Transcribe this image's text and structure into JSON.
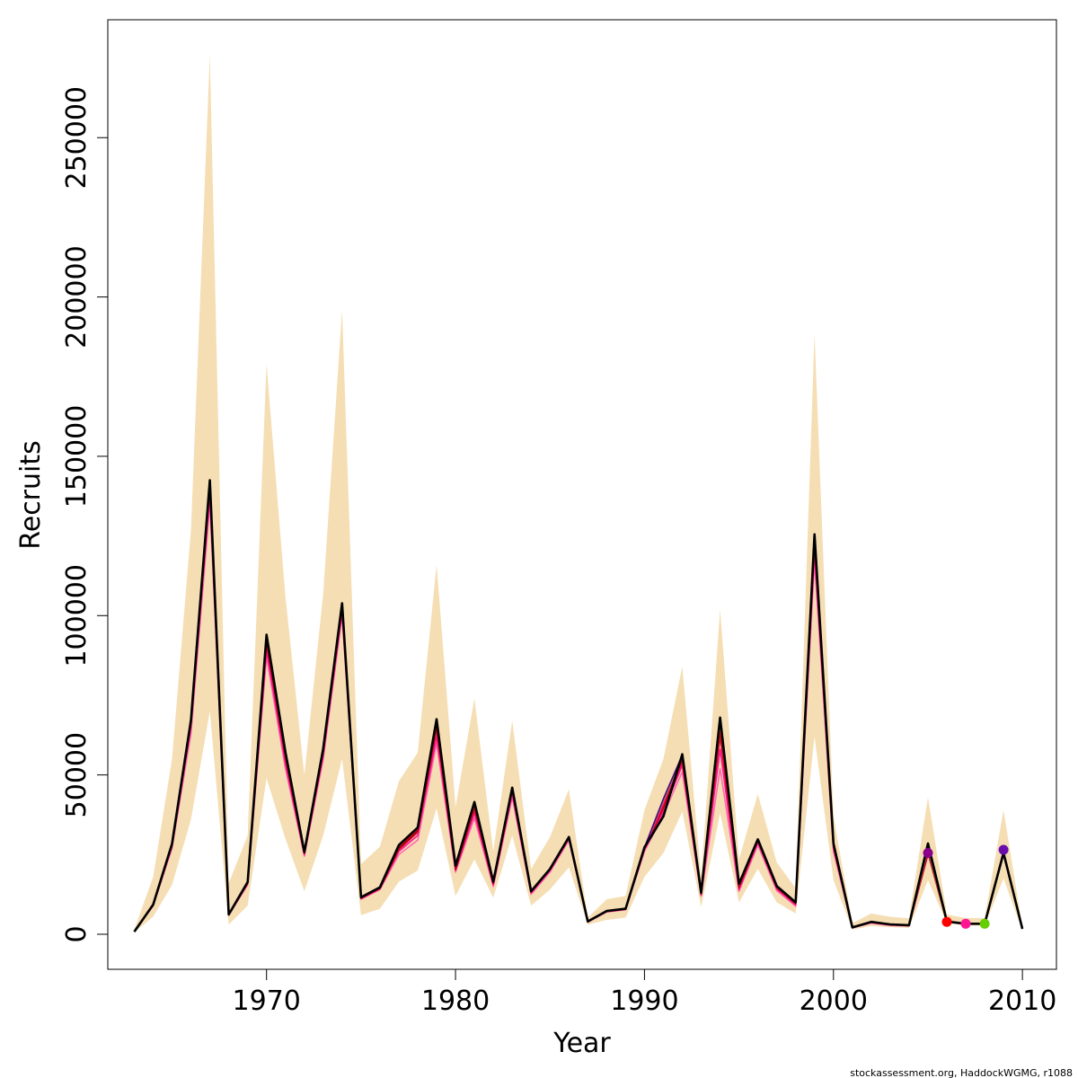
{
  "chart_data": {
    "type": "line",
    "xlabel": "Year",
    "ylabel": "Recruits",
    "xlim": [
      1961.6,
      2011.8
    ],
    "ylim": [
      -11000,
      287000
    ],
    "x_ticks": [
      1970,
      1980,
      1990,
      2000,
      2010
    ],
    "y_ticks": [
      0,
      50000,
      100000,
      150000,
      200000,
      250000
    ],
    "band": {
      "color": "#f5deb3",
      "years": [
        1963,
        1964,
        1965,
        1966,
        1967,
        1968,
        1969,
        1970,
        1971,
        1972,
        1973,
        1974,
        1975,
        1976,
        1977,
        1978,
        1979,
        1980,
        1981,
        1982,
        1983,
        1984,
        1985,
        1986,
        1987,
        1988,
        1989,
        1990,
        1991,
        1992,
        1993,
        1994,
        1995,
        1996,
        1997,
        1998,
        1999,
        2000,
        2001,
        2002,
        2003,
        2004,
        2005,
        2006,
        2007,
        2008,
        2009,
        2010
      ],
      "lower": [
        600,
        5500,
        15500,
        36000,
        70000,
        3000,
        9000,
        49000,
        30000,
        13500,
        31000,
        55000,
        6000,
        8000,
        16500,
        20000,
        39500,
        12000,
        23500,
        11500,
        31000,
        9000,
        14000,
        21000,
        3000,
        4500,
        5200,
        18000,
        25500,
        38500,
        8500,
        38000,
        10000,
        20500,
        10000,
        6500,
        62000,
        17000,
        1500,
        2600,
        2200,
        2000,
        17000,
        3500,
        2700,
        2700,
        17500,
        1000
      ],
      "upper": [
        1500,
        18000,
        55000,
        127000,
        276000,
        16000,
        31000,
        179000,
        106000,
        50000,
        107000,
        196000,
        22000,
        27500,
        48000,
        57000,
        116000,
        40000,
        74000,
        26000,
        67000,
        20500,
        30500,
        45500,
        5200,
        11000,
        12000,
        39000,
        55000,
        84000,
        18000,
        102000,
        23500,
        44000,
        22500,
        14500,
        188500,
        37000,
        3500,
        6500,
        5500,
        5000,
        43000,
        6200,
        5100,
        5100,
        39000,
        2200
      ]
    },
    "series": [
      {
        "color": "#ff69b4",
        "values": [
          800,
          9000,
          27000,
          63000,
          135000,
          6000,
          15500,
          87000,
          52000,
          24500,
          55000,
          100000,
          11000,
          14000,
          25000,
          29500,
          60000,
          19500,
          36500,
          15000,
          43000,
          12500,
          19500,
          29500,
          3800,
          7000,
          7700,
          26000,
          37500,
          51000,
          12000,
          52000,
          13500,
          28000,
          13700,
          8800,
          117000,
          26000,
          2000,
          3500,
          2800,
          2600
        ]
      },
      {
        "color": "#ff1493",
        "values": [
          800,
          9000,
          27500,
          65000,
          138000,
          6000,
          15800,
          89000,
          53500,
          25000,
          56000,
          101000,
          11200,
          14200,
          26000,
          31000,
          62000,
          20000,
          38000,
          15500,
          44000,
          13000,
          20000,
          30000,
          3900,
          7100,
          7800,
          26500,
          38500,
          53000,
          12300,
          58000,
          14000,
          28800,
          14200,
          9200,
          120000,
          27000,
          2100,
          3700,
          2900,
          2700
        ]
      },
      {
        "color": "#dc143c",
        "values": [
          800,
          9200,
          28000,
          66000,
          140000,
          6100,
          16000,
          91000,
          55000,
          25300,
          57000,
          102500,
          11300,
          14400,
          26500,
          32000,
          64000,
          20300,
          39000,
          15800,
          45000,
          13200,
          20200,
          30200,
          4000,
          7200,
          7900,
          27000,
          39500,
          54000,
          12500,
          62000,
          14500,
          29200,
          14500,
          9500,
          122000,
          27500,
          2100,
          3800,
          3000,
          2750,
          25000
        ]
      },
      {
        "color": "#8b0000",
        "values": [
          800,
          9200,
          28000,
          66500,
          141000,
          6200,
          16200,
          92000,
          56000,
          25500,
          57500,
          103000,
          11400,
          14500,
          27000,
          32500,
          65500,
          20500,
          40000,
          16000,
          45500,
          13300,
          20300,
          30300,
          4000,
          7300,
          8000,
          27000,
          40000,
          55000,
          12700,
          64000,
          15000,
          29500,
          14800,
          9700,
          123500,
          28000,
          2150,
          3850,
          3050,
          2800,
          25500,
          3800
        ]
      },
      {
        "color": "#ff0000",
        "values": [
          800,
          9300,
          28200,
          67000,
          142000,
          6200,
          16300,
          93000,
          56500,
          25600,
          57800,
          103500,
          11500,
          14600,
          27500,
          33000,
          66500,
          21000,
          40500,
          16200,
          46000,
          13400,
          20400,
          30400,
          4000,
          7300,
          8000,
          27000,
          40500,
          55500,
          12800,
          65000,
          15300,
          29600,
          14900,
          9800,
          124000,
          28200,
          2150,
          3900,
          3100,
          2850,
          26000,
          3900
        ]
      },
      {
        "color": "#ff00a0",
        "values": [
          800,
          9300,
          28300,
          67200,
          142300,
          6200,
          16300,
          93500,
          56800,
          25700,
          58000,
          103700,
          11550,
          14650,
          27700,
          33200,
          67000,
          21200,
          40800,
          16300,
          46000,
          13450,
          20450,
          30450,
          4000,
          7300,
          8000,
          27100,
          41000,
          55800,
          12900,
          66000,
          15500,
          29700,
          14950,
          9850,
          124500,
          28300,
          2150,
          3900,
          3100,
          2850,
          26500,
          3900,
          3300
        ]
      },
      {
        "color": "#66cd00",
        "values": [
          800,
          9300,
          28400,
          67300,
          142500,
          6200,
          16400,
          93700,
          57000,
          25800,
          58200,
          103800,
          11600,
          14700,
          27800,
          33300,
          67200,
          21300,
          41000,
          16400,
          46000,
          13500,
          20500,
          30500,
          4000,
          7300,
          8000,
          27200,
          42000,
          56000,
          12950,
          66500,
          15600,
          29800,
          15000,
          9900,
          124800,
          28400,
          2150,
          3900,
          3100,
          2850,
          27000,
          3900,
          3300,
          3300
        ]
      },
      {
        "color": "#4b0082",
        "values": [
          800,
          9300,
          28400,
          67300,
          142500,
          6200,
          16400,
          93800,
          57100,
          25800,
          58200,
          103800,
          11600,
          14700,
          27800,
          33300,
          67300,
          21300,
          41000,
          16400,
          46000,
          13500,
          20500,
          30500,
          4000,
          7300,
          8000,
          27200,
          42500,
          56200,
          13000,
          67500,
          15700,
          29800,
          15000,
          9950,
          125000,
          28400,
          2150,
          3900,
          3100,
          2850,
          27500,
          3900,
          3300,
          3300,
          26000
        ]
      },
      {
        "color": "#000000",
        "values": [
          800,
          9300,
          28400,
          67300,
          142500,
          6200,
          16400,
          94000,
          57200,
          25800,
          58300,
          103900,
          11600,
          14700,
          28000,
          33500,
          67500,
          21500,
          41500,
          16500,
          46000,
          13500,
          20500,
          30500,
          4000,
          7300,
          8000,
          27300,
          37000,
          56500,
          13000,
          68000,
          15800,
          29800,
          15100,
          10000,
          125500,
          28500,
          2150,
          3900,
          3100,
          2850,
          28500,
          4000,
          3300,
          3300,
          25500,
          1700
        ]
      }
    ],
    "terminal_points": [
      {
        "year": 2005,
        "value": 25500,
        "color": "#8b008b"
      },
      {
        "year": 2006,
        "value": 3900,
        "color": "#ff0000"
      },
      {
        "year": 2007,
        "value": 3300,
        "color": "#ff1493"
      },
      {
        "year": 2008,
        "value": 3300,
        "color": "#66cd00"
      },
      {
        "year": 2009,
        "value": 26500,
        "color": "#6a0dad"
      }
    ]
  },
  "footer": {
    "credit": "stockassessment.org, HaddockWGMG, r1088"
  }
}
